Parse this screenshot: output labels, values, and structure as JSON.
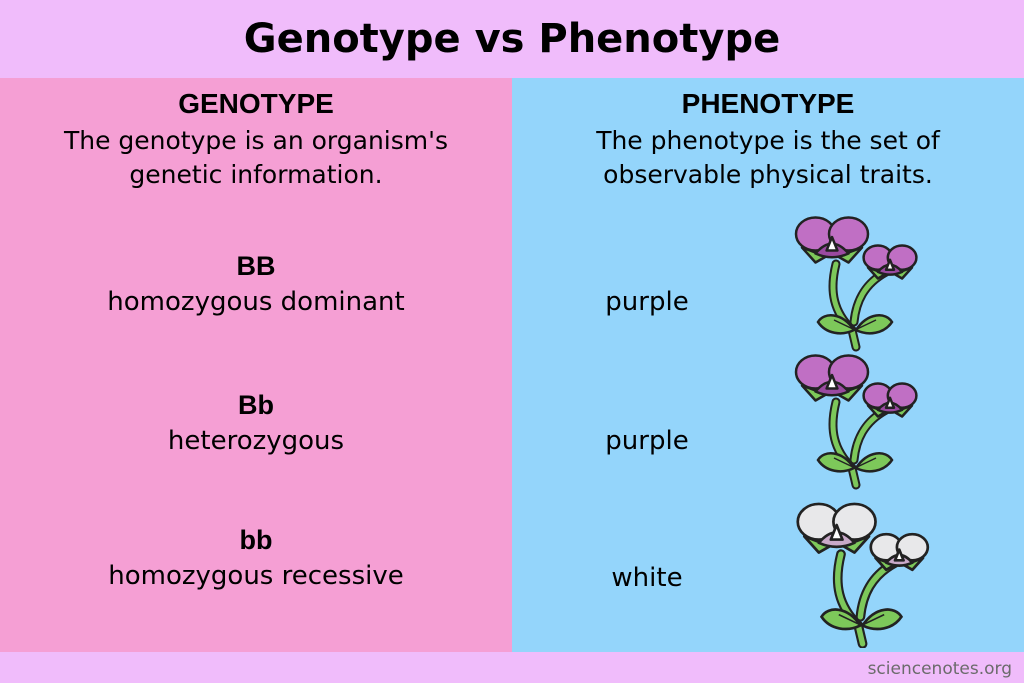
{
  "title": "Genotype vs Phenotype",
  "genotype": {
    "heading": "GENOTYPE",
    "description": "The genotype is an organism's genetic information."
  },
  "phenotype": {
    "heading": "PHENOTYPE",
    "description": "The phenotype is the set of observable physical traits."
  },
  "rows": [
    {
      "code": "BB",
      "type": "homozygous dominant",
      "phenotype": "purple",
      "flower_color": "#c06fc4"
    },
    {
      "code": "Bb",
      "type": "heterozygous",
      "phenotype": "purple",
      "flower_color": "#c06fc4"
    },
    {
      "code": "bb",
      "type": "homozygous recessive",
      "phenotype": "white",
      "flower_color": "#e8e8ea"
    }
  ],
  "colors": {
    "background": "#f0bcfb",
    "genotype_panel": "#f59fd4",
    "phenotype_panel": "#94d5fb",
    "stem": "#7dc85a"
  },
  "footer": "sciencenotes.org"
}
